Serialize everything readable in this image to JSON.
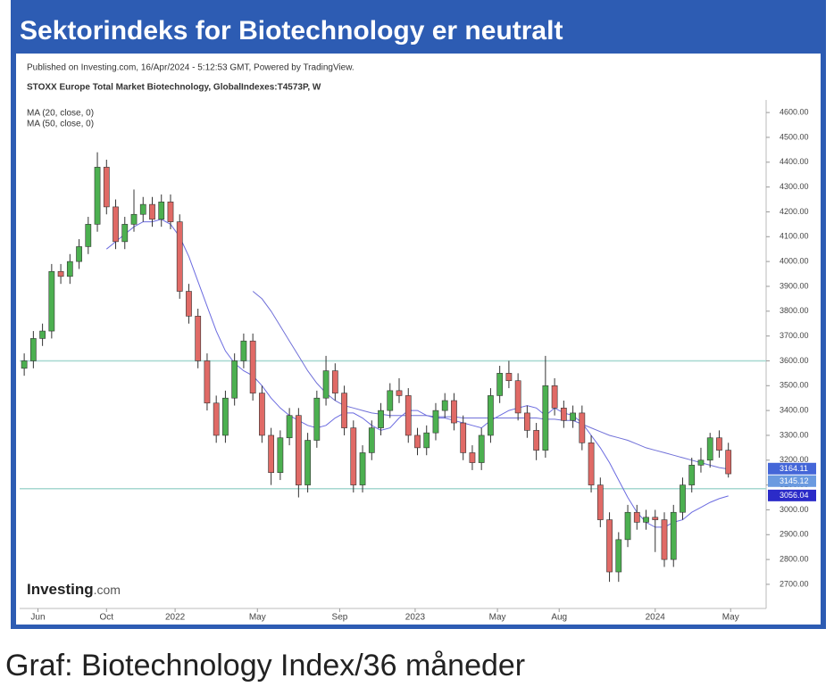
{
  "header": {
    "title": "Sektorindeks for Biotechnology er neutralt"
  },
  "chart_data": {
    "type": "candlestick",
    "published": "Published on Investing.com, 16/Apr/2024 - 5:12:53 GMT, Powered by TradingView.",
    "title": "STOXX Europe Total Market Biotechnology, GlobalIndexes:T4573P, W",
    "logo": {
      "name": "Investing",
      "suffix": ".com"
    },
    "x": [
      0,
      2,
      4,
      6,
      8,
      10,
      12,
      14,
      16,
      18,
      20,
      22,
      24,
      26,
      28,
      30,
      32,
      34,
      36,
      38,
      40,
      42,
      44,
      46,
      48,
      50,
      52,
      54,
      56,
      58,
      60,
      62,
      64,
      66,
      68,
      70,
      72,
      74,
      76,
      78,
      80,
      82,
      84,
      86,
      88,
      90,
      92,
      94,
      96,
      98,
      100,
      102,
      104,
      106,
      108,
      110,
      112,
      114,
      116,
      118,
      120,
      122,
      124,
      126,
      128,
      130,
      132,
      134,
      136,
      138,
      140,
      142,
      144,
      146,
      148,
      150,
      152,
      154
    ],
    "open": [
      3570,
      3600,
      3690,
      3720,
      3960,
      3940,
      4000,
      4060,
      4150,
      4380,
      4220,
      4080,
      4150,
      4190,
      4230,
      4170,
      4240,
      4160,
      3880,
      3780,
      3600,
      3430,
      3300,
      3450,
      3600,
      3680,
      3470,
      3300,
      3150,
      3290,
      3380,
      3100,
      3280,
      3450,
      3560,
      3470,
      3330,
      3100,
      3230,
      3330,
      3400,
      3480,
      3460,
      3300,
      3250,
      3310,
      3400,
      3440,
      3350,
      3230,
      3190,
      3300,
      3460,
      3550,
      3520,
      3390,
      3320,
      3240,
      3500,
      3410,
      3360,
      3390,
      3270,
      3100,
      2960,
      2750,
      2880,
      2990,
      2950,
      2970,
      2960,
      2800,
      2990,
      3100,
      3180,
      3200,
      3290,
      3240
    ],
    "high": [
      3630,
      3720,
      3750,
      3990,
      3990,
      4030,
      4090,
      4180,
      4440,
      4410,
      4250,
      4180,
      4290,
      4260,
      4260,
      4270,
      4270,
      4190,
      3910,
      3810,
      3630,
      3460,
      3480,
      3630,
      3710,
      3710,
      3500,
      3330,
      3320,
      3410,
      3410,
      3310,
      3480,
      3620,
      3590,
      3500,
      3360,
      3260,
      3360,
      3430,
      3510,
      3530,
      3490,
      3330,
      3340,
      3430,
      3470,
      3470,
      3380,
      3260,
      3330,
      3490,
      3580,
      3600,
      3550,
      3420,
      3350,
      3620,
      3530,
      3440,
      3420,
      3420,
      3300,
      3130,
      2990,
      2910,
      3020,
      3020,
      3000,
      3000,
      2990,
      3020,
      3130,
      3210,
      3250,
      3310,
      3320,
      3270
    ],
    "low": [
      3540,
      3570,
      3660,
      3690,
      3910,
      3910,
      3970,
      4030,
      4120,
      4190,
      4050,
      4050,
      4120,
      4160,
      4140,
      4140,
      4130,
      3850,
      3750,
      3570,
      3400,
      3270,
      3270,
      3420,
      3570,
      3440,
      3270,
      3100,
      3120,
      3260,
      3050,
      3070,
      3250,
      3420,
      3440,
      3300,
      3070,
      3070,
      3200,
      3300,
      3370,
      3430,
      3270,
      3220,
      3220,
      3280,
      3370,
      3320,
      3200,
      3160,
      3160,
      3270,
      3430,
      3490,
      3360,
      3290,
      3200,
      3210,
      3380,
      3330,
      3330,
      3240,
      3070,
      2930,
      2710,
      2710,
      2850,
      2920,
      2920,
      2830,
      2770,
      2770,
      2960,
      3070,
      3150,
      3170,
      3210,
      3130
    ],
    "close": [
      3600,
      3690,
      3720,
      3960,
      3940,
      4000,
      4060,
      4150,
      4380,
      4220,
      4080,
      4150,
      4190,
      4230,
      4170,
      4240,
      4160,
      3880,
      3780,
      3600,
      3430,
      3300,
      3450,
      3600,
      3680,
      3470,
      3300,
      3150,
      3290,
      3380,
      3100,
      3280,
      3450,
      3560,
      3470,
      3330,
      3100,
      3230,
      3330,
      3400,
      3480,
      3460,
      3300,
      3250,
      3310,
      3400,
      3440,
      3350,
      3230,
      3190,
      3300,
      3460,
      3550,
      3520,
      3390,
      3320,
      3240,
      3500,
      3410,
      3360,
      3390,
      3270,
      3100,
      2960,
      2750,
      2880,
      2990,
      2950,
      2970,
      2960,
      2800,
      2990,
      3100,
      3180,
      3200,
      3290,
      3240,
      3145.12
    ],
    "up_color": "#4cb050",
    "down_color": "#e06a66",
    "lines": [
      {
        "name": "MA (20, close, 0)",
        "color": "#6b6be0",
        "tag_color": "#2b2bc8",
        "values": [
          null,
          null,
          null,
          null,
          null,
          null,
          null,
          null,
          null,
          4050,
          4080,
          4110,
          4140,
          4160,
          4160,
          4170,
          4150,
          4100,
          4020,
          3920,
          3820,
          3720,
          3640,
          3590,
          3560,
          3540,
          3500,
          3450,
          3410,
          3380,
          3360,
          3340,
          3330,
          3340,
          3370,
          3390,
          3390,
          3370,
          3340,
          3320,
          3330,
          3370,
          3400,
          3400,
          3380,
          3370,
          3370,
          3360,
          3350,
          3340,
          3330,
          3360,
          3380,
          3400,
          3410,
          3420,
          3410,
          3380,
          3410,
          3390,
          3380,
          3350,
          3300,
          3250,
          3190,
          3120,
          3050,
          2990,
          2950,
          2930,
          2930,
          2950,
          2960,
          2990,
          3010,
          3030,
          3045,
          3056.04
        ]
      },
      {
        "name": "MA (50, close, 0)",
        "color": "#7070d8",
        "tag_color": "#4466d8",
        "values": [
          null,
          null,
          null,
          null,
          null,
          null,
          null,
          null,
          null,
          null,
          null,
          null,
          null,
          null,
          null,
          null,
          null,
          null,
          null,
          null,
          null,
          null,
          null,
          null,
          null,
          3880,
          3850,
          3800,
          3740,
          3680,
          3620,
          3560,
          3510,
          3470,
          3440,
          3420,
          3410,
          3400,
          3390,
          3385,
          3380,
          3380,
          3380,
          3380,
          3380,
          3375,
          3375,
          3375,
          3370,
          3370,
          3370,
          3370,
          3370,
          3370,
          3370,
          3370,
          3370,
          3365,
          3365,
          3360,
          3360,
          3345,
          3330,
          3315,
          3300,
          3290,
          3280,
          3265,
          3250,
          3240,
          3230,
          3220,
          3210,
          3200,
          3190,
          3180,
          3170,
          3164.11
        ]
      }
    ],
    "close_tag_color": "#6a9ae0",
    "hlines": [
      3600,
      3085
    ],
    "hline_color": "#a6d8d0",
    "xlim": [
      -1,
      160.7
    ],
    "xticks": [
      {
        "value": 3,
        "label": "Jun"
      },
      {
        "value": 18,
        "label": "Oct"
      },
      {
        "value": 33,
        "label": "2022"
      },
      {
        "value": 51,
        "label": "May"
      },
      {
        "value": 69,
        "label": "Sep"
      },
      {
        "value": 85.5,
        "label": "2023"
      },
      {
        "value": 103.5,
        "label": "May"
      },
      {
        "value": 117,
        "label": "Aug"
      },
      {
        "value": 138,
        "label": "2024"
      },
      {
        "value": 154.5,
        "label": "May"
      }
    ],
    "ylim": [
      2610,
      4640
    ],
    "yticks": [
      {
        "value": 4600,
        "label": "4600.00"
      },
      {
        "value": 4500,
        "label": "4500.00"
      },
      {
        "value": 4400,
        "label": "4400.00"
      },
      {
        "value": 4300,
        "label": "4300.00"
      },
      {
        "value": 4200,
        "label": "4200.00"
      },
      {
        "value": 4100,
        "label": "4100.00"
      },
      {
        "value": 4000,
        "label": "4000.00"
      },
      {
        "value": 3900,
        "label": "3900.00"
      },
      {
        "value": 3800,
        "label": "3800.00"
      },
      {
        "value": 3700,
        "label": "3700.00"
      },
      {
        "value": 3600,
        "label": "3600.00"
      },
      {
        "value": 3500,
        "label": "3500.00"
      },
      {
        "value": 3400,
        "label": "3400.00"
      },
      {
        "value": 3300,
        "label": "3300.00"
      },
      {
        "value": 3200,
        "label": "3200.00"
      },
      {
        "value": 3100,
        "label": "3100.00"
      },
      {
        "value": 3000,
        "label": "3000.00"
      },
      {
        "value": 2900,
        "label": "2900.00"
      },
      {
        "value": 2800,
        "label": "2800.00"
      },
      {
        "value": 2700,
        "label": "2700.00"
      }
    ]
  },
  "caption": "Graf: Biotechnology Index/36 måneder"
}
